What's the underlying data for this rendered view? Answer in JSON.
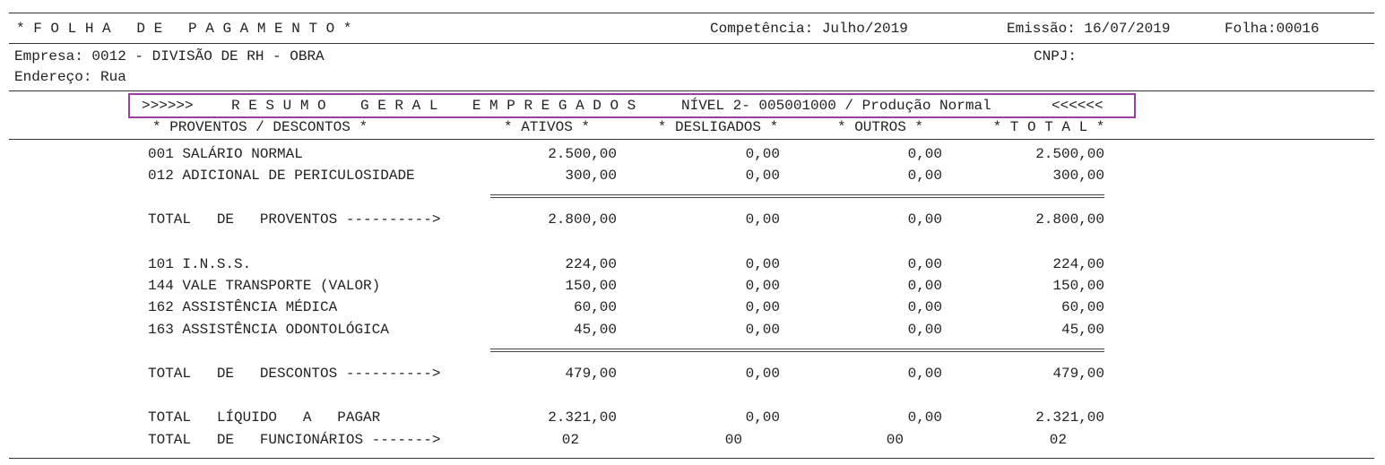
{
  "header": {
    "title": "* F O L H A   D E   P A G A M E N T O *",
    "competencia": "Competência: Julho/2019",
    "emissao": "Emissão: 16/07/2019",
    "folha": "Folha:00016"
  },
  "company": {
    "empresa": "Empresa: 0012 - DIVISÃO DE RH - OBRA",
    "cnpj": "CNPJ:",
    "endereco": "Endereço: Rua"
  },
  "banner": {
    "left": ">>>>>>",
    "title": "R E S U M O    G E R A L    E M P R E G A D O S",
    "nivel": "NÍVEL 2- 005001000 / Produção Normal",
    "right": "<<<<<<"
  },
  "table": {
    "columns": [
      "* PROVENTOS / DESCONTOS *",
      "* ATIVOS *",
      "* DESLIGADOS *",
      "* OUTROS *",
      "* T O T A L *"
    ],
    "proventos": [
      [
        "001 SALÁRIO NORMAL",
        "2.500,00",
        "0,00",
        "0,00",
        "2.500,00"
      ],
      [
        "012 ADICIONAL DE PERICULOSIDADE",
        "300,00",
        "0,00",
        "0,00",
        "300,00"
      ]
    ],
    "total_proventos": [
      "TOTAL   DE   PROVENTOS ---------->",
      "2.800,00",
      "0,00",
      "0,00",
      "2.800,00"
    ],
    "descontos": [
      [
        "101 I.N.S.S.",
        "224,00",
        "0,00",
        "0,00",
        "224,00"
      ],
      [
        "144 VALE TRANSPORTE (VALOR)",
        "150,00",
        "0,00",
        "0,00",
        "150,00"
      ],
      [
        "162 ASSISTÊNCIA MÉDICA",
        "60,00",
        "0,00",
        "0,00",
        "60,00"
      ],
      [
        "163 ASSISTÊNCIA ODONTOLÓGICA",
        "45,00",
        "0,00",
        "0,00",
        "45,00"
      ]
    ],
    "total_descontos": [
      "TOTAL   DE   DESCONTOS ---------->",
      "479,00",
      "0,00",
      "0,00",
      "479,00"
    ],
    "liquido": [
      "TOTAL   LÍQUIDO   A   PAGAR",
      "2.321,00",
      "0,00",
      "0,00",
      "2.321,00"
    ],
    "funcionarios": [
      "TOTAL   DE   FUNCIONÁRIOS ------->",
      "02",
      "00",
      "00",
      "02"
    ]
  }
}
